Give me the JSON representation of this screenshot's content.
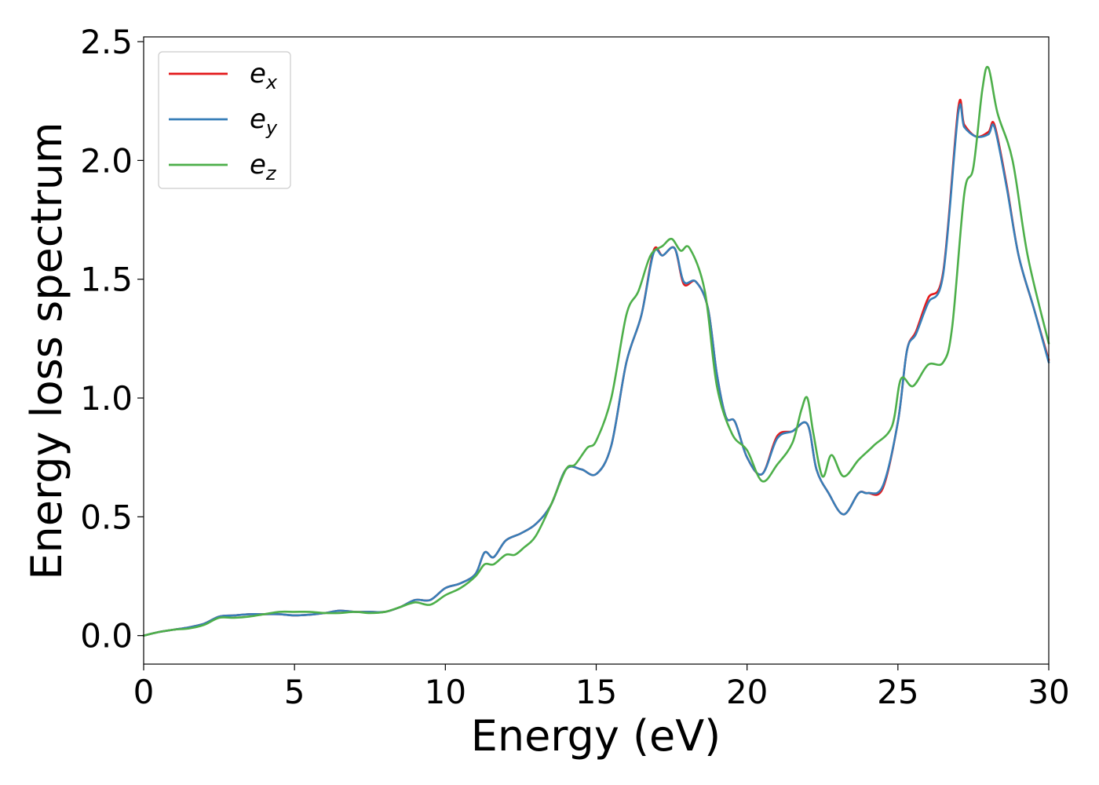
{
  "chart_data": {
    "type": "line",
    "title": "",
    "xlabel": "Energy (eV)",
    "ylabel": "Energy loss spectrum",
    "xlim": [
      0,
      30
    ],
    "ylim": [
      -0.12,
      2.52
    ],
    "xticks": [
      "0",
      "5",
      "10",
      "15",
      "20",
      "25",
      "30"
    ],
    "yticks": [
      "0.0",
      "0.5",
      "1.0",
      "1.5",
      "2.0",
      "2.5"
    ],
    "grid": false,
    "legend_position": "top-left",
    "series": [
      {
        "name": "e_x",
        "label_base": "e",
        "label_sub": "x",
        "color": "#e41a1c",
        "x": [
          0,
          0.5,
          1,
          1.5,
          2,
          2.5,
          3,
          3.5,
          4,
          4.5,
          5,
          5.5,
          6,
          6.5,
          7,
          7.5,
          8,
          8.5,
          9,
          9.5,
          10,
          10.5,
          11,
          11.3,
          11.6,
          12,
          12.5,
          13,
          13.5,
          14,
          14.5,
          15,
          15.5,
          16,
          16.5,
          16.9,
          17.2,
          17.6,
          17.9,
          18.3,
          18.7,
          19,
          19.3,
          19.6,
          20,
          20.5,
          21,
          21.5,
          22,
          22.3,
          22.7,
          23.2,
          23.7,
          24,
          24.5,
          25,
          25.3,
          25.6,
          26,
          26.5,
          27,
          27.2,
          27.6,
          28,
          28.2,
          28.6,
          29,
          29.5,
          30
        ],
        "values": [
          0.0,
          0.015,
          0.025,
          0.035,
          0.05,
          0.08,
          0.085,
          0.09,
          0.09,
          0.09,
          0.085,
          0.088,
          0.095,
          0.105,
          0.1,
          0.1,
          0.1,
          0.12,
          0.15,
          0.15,
          0.2,
          0.22,
          0.26,
          0.35,
          0.33,
          0.4,
          0.43,
          0.47,
          0.55,
          0.7,
          0.7,
          0.68,
          0.8,
          1.15,
          1.35,
          1.62,
          1.6,
          1.63,
          1.48,
          1.49,
          1.38,
          1.1,
          0.92,
          0.9,
          0.75,
          0.68,
          0.84,
          0.86,
          0.89,
          0.7,
          0.6,
          0.51,
          0.6,
          0.6,
          0.62,
          0.9,
          1.2,
          1.28,
          1.42,
          1.53,
          2.22,
          2.15,
          2.1,
          2.12,
          2.15,
          1.9,
          1.6,
          1.38,
          1.16
        ]
      },
      {
        "name": "e_y",
        "label_base": "e",
        "label_sub": "y",
        "color": "#377eb8",
        "x": [
          0,
          0.5,
          1,
          1.5,
          2,
          2.5,
          3,
          3.5,
          4,
          4.5,
          5,
          5.5,
          6,
          6.5,
          7,
          7.5,
          8,
          8.5,
          9,
          9.5,
          10,
          10.5,
          11,
          11.3,
          11.6,
          12,
          12.5,
          13,
          13.5,
          14,
          14.5,
          15,
          15.5,
          16,
          16.5,
          16.9,
          17.2,
          17.6,
          17.9,
          18.3,
          18.7,
          19,
          19.3,
          19.6,
          20,
          20.5,
          21,
          21.5,
          22,
          22.3,
          22.7,
          23.2,
          23.7,
          24,
          24.5,
          25,
          25.3,
          25.6,
          26,
          26.5,
          27,
          27.2,
          27.6,
          28,
          28.2,
          28.6,
          29,
          29.5,
          30
        ],
        "values": [
          0.0,
          0.015,
          0.025,
          0.035,
          0.05,
          0.08,
          0.085,
          0.09,
          0.09,
          0.09,
          0.085,
          0.088,
          0.095,
          0.105,
          0.1,
          0.1,
          0.1,
          0.12,
          0.15,
          0.15,
          0.2,
          0.22,
          0.26,
          0.35,
          0.33,
          0.4,
          0.43,
          0.47,
          0.55,
          0.7,
          0.7,
          0.68,
          0.8,
          1.15,
          1.35,
          1.61,
          1.6,
          1.63,
          1.49,
          1.49,
          1.38,
          1.1,
          0.92,
          0.9,
          0.75,
          0.68,
          0.83,
          0.86,
          0.89,
          0.7,
          0.6,
          0.51,
          0.6,
          0.6,
          0.63,
          0.9,
          1.2,
          1.27,
          1.4,
          1.52,
          2.2,
          2.14,
          2.1,
          2.11,
          2.14,
          1.89,
          1.6,
          1.38,
          1.15
        ]
      },
      {
        "name": "e_z",
        "label_base": "e",
        "label_sub": "z",
        "color": "#4daf4a",
        "x": [
          0,
          0.5,
          1,
          1.5,
          2,
          2.5,
          3,
          3.5,
          4,
          4.5,
          5,
          5.5,
          6,
          6.5,
          7,
          7.5,
          8,
          8.5,
          9,
          9.5,
          10,
          10.5,
          11,
          11.3,
          11.6,
          12,
          12.3,
          12.6,
          13,
          13.5,
          14,
          14.3,
          14.7,
          15,
          15.5,
          16,
          16.4,
          16.8,
          17.2,
          17.5,
          17.8,
          18.1,
          18.6,
          19,
          19.5,
          20,
          20.5,
          21,
          21.5,
          21.8,
          22.0,
          22.2,
          22.5,
          22.8,
          23.2,
          23.7,
          24.2,
          24.8,
          25.1,
          25.5,
          26,
          26.5,
          26.8,
          27.2,
          27.5,
          27.8,
          28.0,
          28.3,
          28.8,
          29.3,
          30
        ],
        "values": [
          0.0,
          0.015,
          0.025,
          0.03,
          0.045,
          0.075,
          0.075,
          0.08,
          0.09,
          0.1,
          0.1,
          0.1,
          0.095,
          0.095,
          0.1,
          0.095,
          0.1,
          0.12,
          0.14,
          0.13,
          0.17,
          0.2,
          0.25,
          0.3,
          0.3,
          0.34,
          0.34,
          0.37,
          0.42,
          0.55,
          0.7,
          0.72,
          0.79,
          0.82,
          1.0,
          1.35,
          1.45,
          1.6,
          1.64,
          1.67,
          1.62,
          1.63,
          1.45,
          1.05,
          0.85,
          0.78,
          0.65,
          0.72,
          0.81,
          0.95,
          1.0,
          0.85,
          0.67,
          0.76,
          0.67,
          0.74,
          0.8,
          0.88,
          1.08,
          1.05,
          1.14,
          1.15,
          1.3,
          1.86,
          1.97,
          2.3,
          2.39,
          2.2,
          2.0,
          1.6,
          1.23
        ]
      }
    ]
  }
}
